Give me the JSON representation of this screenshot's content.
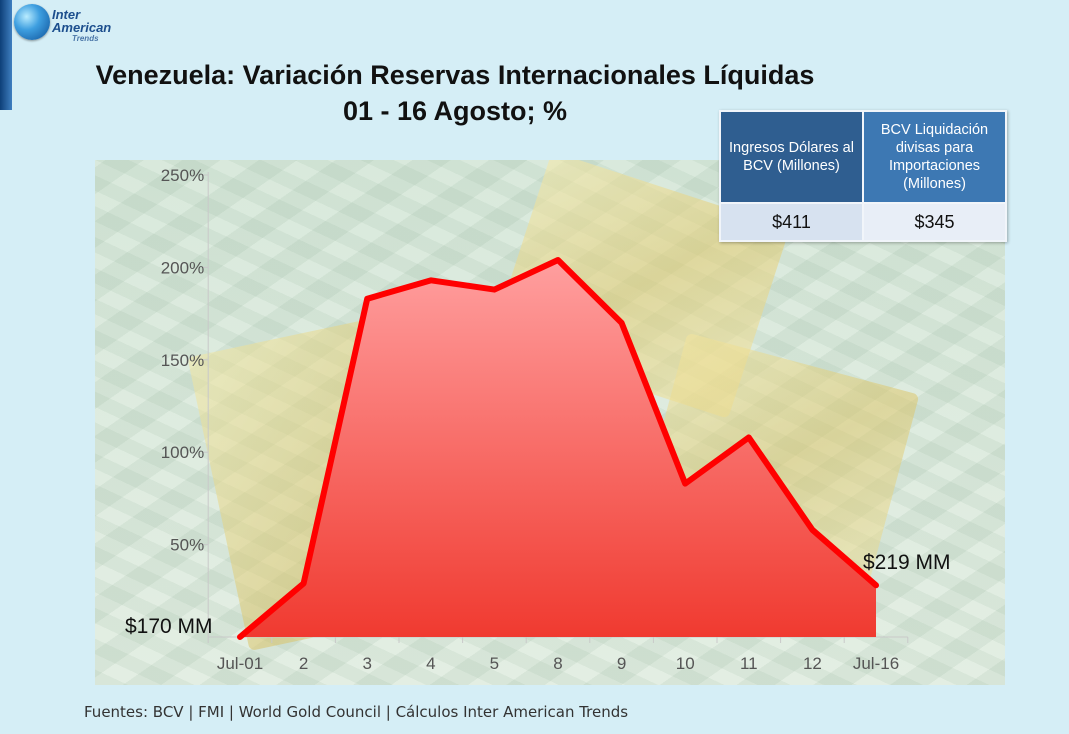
{
  "logo": {
    "line1": "Inter",
    "line2": "American",
    "line3": "Trends"
  },
  "title_line1": "Venezuela: Variación Reservas Internacionales Líquidas",
  "title_line2": "01 - 16 Agosto; %",
  "table": {
    "headers": [
      "Ingresos Dólares al BCV (Millones)",
      "BCV Liquidación divisas para Importaciones (Millones)"
    ],
    "values": [
      "$411",
      "$345"
    ],
    "colors": {
      "header_left": "#2f5e90",
      "header_right": "#3d78b3"
    }
  },
  "annotations": {
    "start": "$170 MM",
    "end": "$219 MM"
  },
  "footer": "Fuentes: BCV | FMI | World Gold Council  | Cálculos Inter American Trends",
  "chart_data": {
    "type": "area",
    "categories": [
      "Jul-01",
      "2",
      "3",
      "4",
      "5",
      "8",
      "9",
      "10",
      "11",
      "12",
      "Jul-16"
    ],
    "values": [
      0,
      29,
      183,
      193,
      188,
      204,
      170,
      83,
      108,
      58,
      28
    ],
    "ylim": [
      0,
      250
    ],
    "yticks": [
      50,
      100,
      150,
      200,
      250
    ],
    "ytick_labels": [
      "50%",
      "100%",
      "150%",
      "200%",
      "250%"
    ],
    "grid": false,
    "colors": {
      "line": "#ff0000",
      "fill_top": "#ff9f9f",
      "fill_bottom": "#f03a30"
    }
  }
}
